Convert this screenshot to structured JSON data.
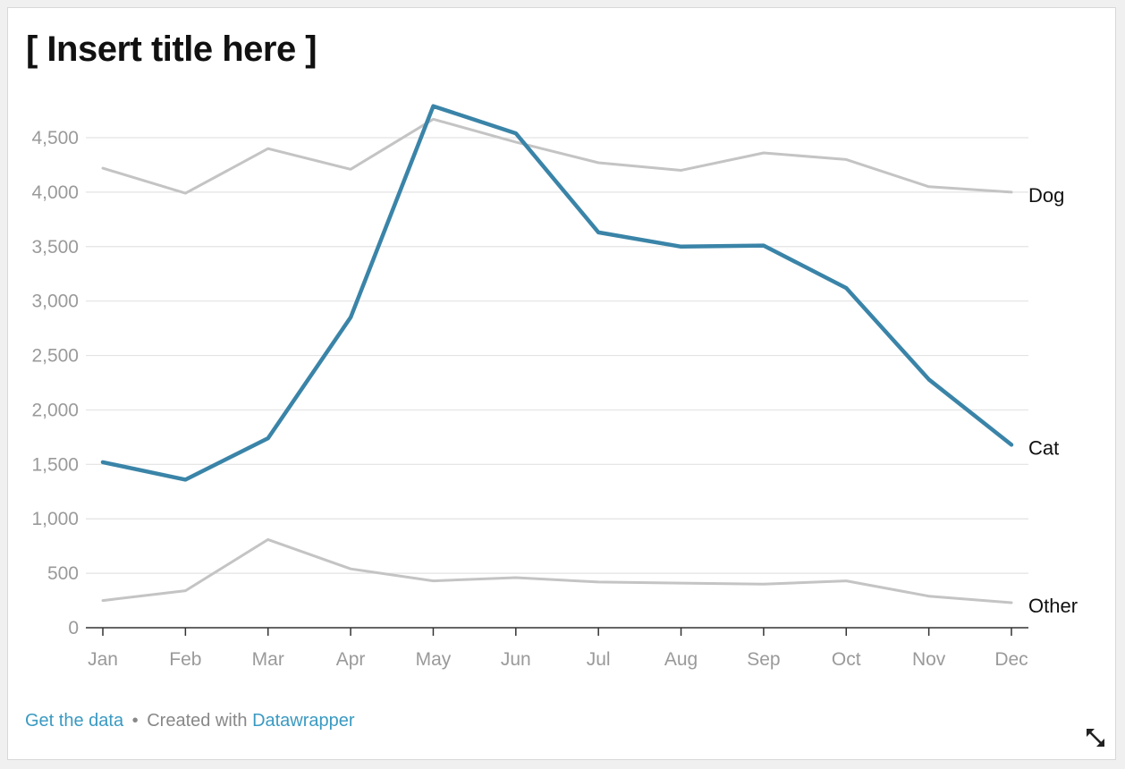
{
  "chart_data": {
    "type": "line",
    "title": "[ Insert title here ]",
    "categories": [
      "Jan",
      "Feb",
      "Mar",
      "Apr",
      "May",
      "Jun",
      "Jul",
      "Aug",
      "Sep",
      "Oct",
      "Nov",
      "Dec"
    ],
    "series": [
      {
        "name": "Dog",
        "color": "#c4c4c4",
        "values": [
          4220,
          3990,
          4400,
          4210,
          4670,
          4460,
          4270,
          4200,
          4360,
          4300,
          4050,
          4000
        ]
      },
      {
        "name": "Cat",
        "color": "#3a84a8",
        "values": [
          1520,
          1360,
          1740,
          2850,
          4790,
          4540,
          3630,
          3500,
          3510,
          3120,
          2280,
          1680
        ]
      },
      {
        "name": "Other",
        "color": "#c4c4c4",
        "values": [
          250,
          340,
          810,
          540,
          430,
          460,
          420,
          410,
          400,
          430,
          290,
          230
        ]
      }
    ],
    "ylim": [
      0,
      4500
    ],
    "yticks": [
      0,
      500,
      1000,
      1500,
      2000,
      2500,
      3000,
      3500,
      4000,
      4500
    ],
    "ytick_labels": [
      "0",
      "500",
      "1,000",
      "1,500",
      "2,000",
      "2,500",
      "3,000",
      "3,500",
      "4,000",
      "4,500"
    ],
    "grid": true,
    "legend": "direct labels at line ends (right)",
    "xlabel": "",
    "ylabel": ""
  },
  "footer": {
    "get_data_label": "Get the data",
    "separator": "•",
    "created_with_label": "Created with",
    "tool_label": "Datawrapper"
  },
  "icons": {
    "resize": "resize-diagonal-icon"
  }
}
